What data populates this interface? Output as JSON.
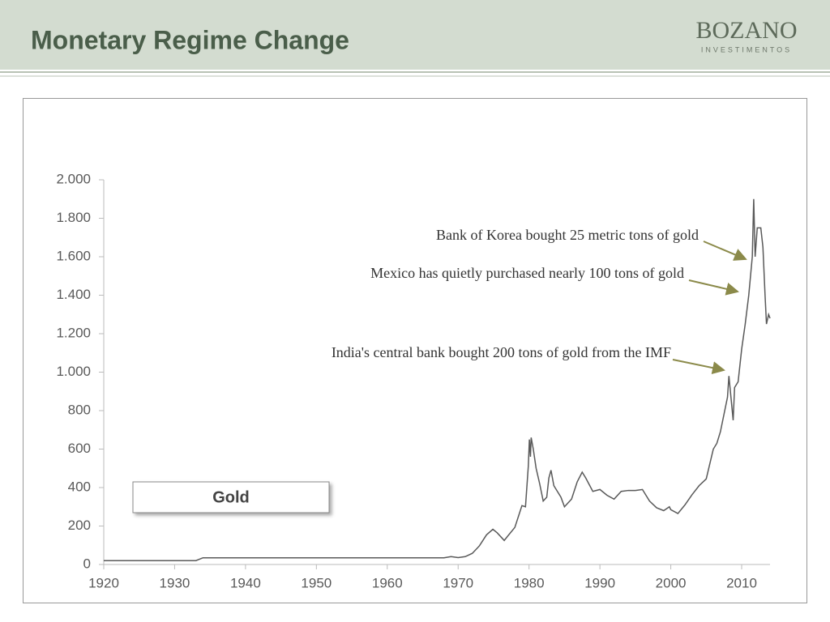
{
  "header": {
    "title": "Monetary Regime Change",
    "logo": "BOZANO",
    "logo_sub": "INVESTIMENTOS"
  },
  "chart_data": {
    "type": "line",
    "annotations": [
      "Bank of Korea bought 25 metric tons of gold",
      "Mexico has quietly purchased nearly 100 tons of gold",
      "India's central bank bought 200 tons of gold from the IMF"
    ],
    "x": [
      1920,
      1933,
      1934,
      1968,
      1969,
      1970,
      1971,
      1972,
      1973,
      1974,
      1974.9,
      1975.5,
      1976.5,
      1977,
      1978,
      1979,
      1979.5,
      1979.9,
      1980.05,
      1980.2,
      1980.3,
      1980.6,
      1981,
      1981.5,
      1982,
      1982.5,
      1982.8,
      1983.1,
      1983.5,
      1984,
      1984.5,
      1985,
      1985.5,
      1986,
      1986.8,
      1987.5,
      1988,
      1989,
      1990,
      1991,
      1992,
      1993,
      1994,
      1995,
      1996,
      1997,
      1998,
      1999,
      1999.8,
      2000,
      2001,
      2002,
      2003,
      2004,
      2005,
      2006,
      2006.5,
      2007,
      2008,
      2008.2,
      2008.8,
      2009,
      2009.5,
      2010,
      2010.5,
      2011,
      2011.5,
      2011.7,
      2011.9,
      2012.2,
      2012.7,
      2013,
      2013.3,
      2013.5,
      2013.8,
      2014
    ],
    "series": [
      {
        "name": "Gold",
        "color": "#595959",
        "values": [
          20,
          20,
          35,
          35,
          41,
          36,
          41,
          58,
          97,
          154,
          183,
          165,
          125,
          148,
          193,
          306,
          300,
          512,
          650,
          560,
          660,
          600,
          500,
          420,
          330,
          350,
          450,
          490,
          410,
          380,
          350,
          300,
          320,
          340,
          430,
          480,
          450,
          380,
          390,
          360,
          340,
          380,
          385,
          385,
          390,
          330,
          295,
          280,
          300,
          285,
          265,
          310,
          363,
          410,
          445,
          600,
          630,
          690,
          870,
          980,
          750,
          920,
          950,
          1120,
          1250,
          1400,
          1600,
          1900,
          1600,
          1750,
          1750,
          1650,
          1400,
          1250,
          1300,
          1280
        ]
      }
    ],
    "xlim": [
      1920,
      2014
    ],
    "ylim": [
      0,
      2000
    ],
    "xticks": [
      1920,
      1930,
      1940,
      1950,
      1960,
      1970,
      1980,
      1990,
      2000,
      2010
    ],
    "yticks": [
      0,
      200,
      400,
      600,
      800,
      {
        "value": 1000,
        "label": "1.000"
      },
      {
        "value": 1200,
        "label": "1.200"
      },
      {
        "value": 1400,
        "label": "1.400"
      },
      {
        "value": 1600,
        "label": "1.600"
      },
      {
        "value": 1800,
        "label": "1.800"
      },
      {
        "value": 2000,
        "label": "2.000"
      }
    ]
  }
}
